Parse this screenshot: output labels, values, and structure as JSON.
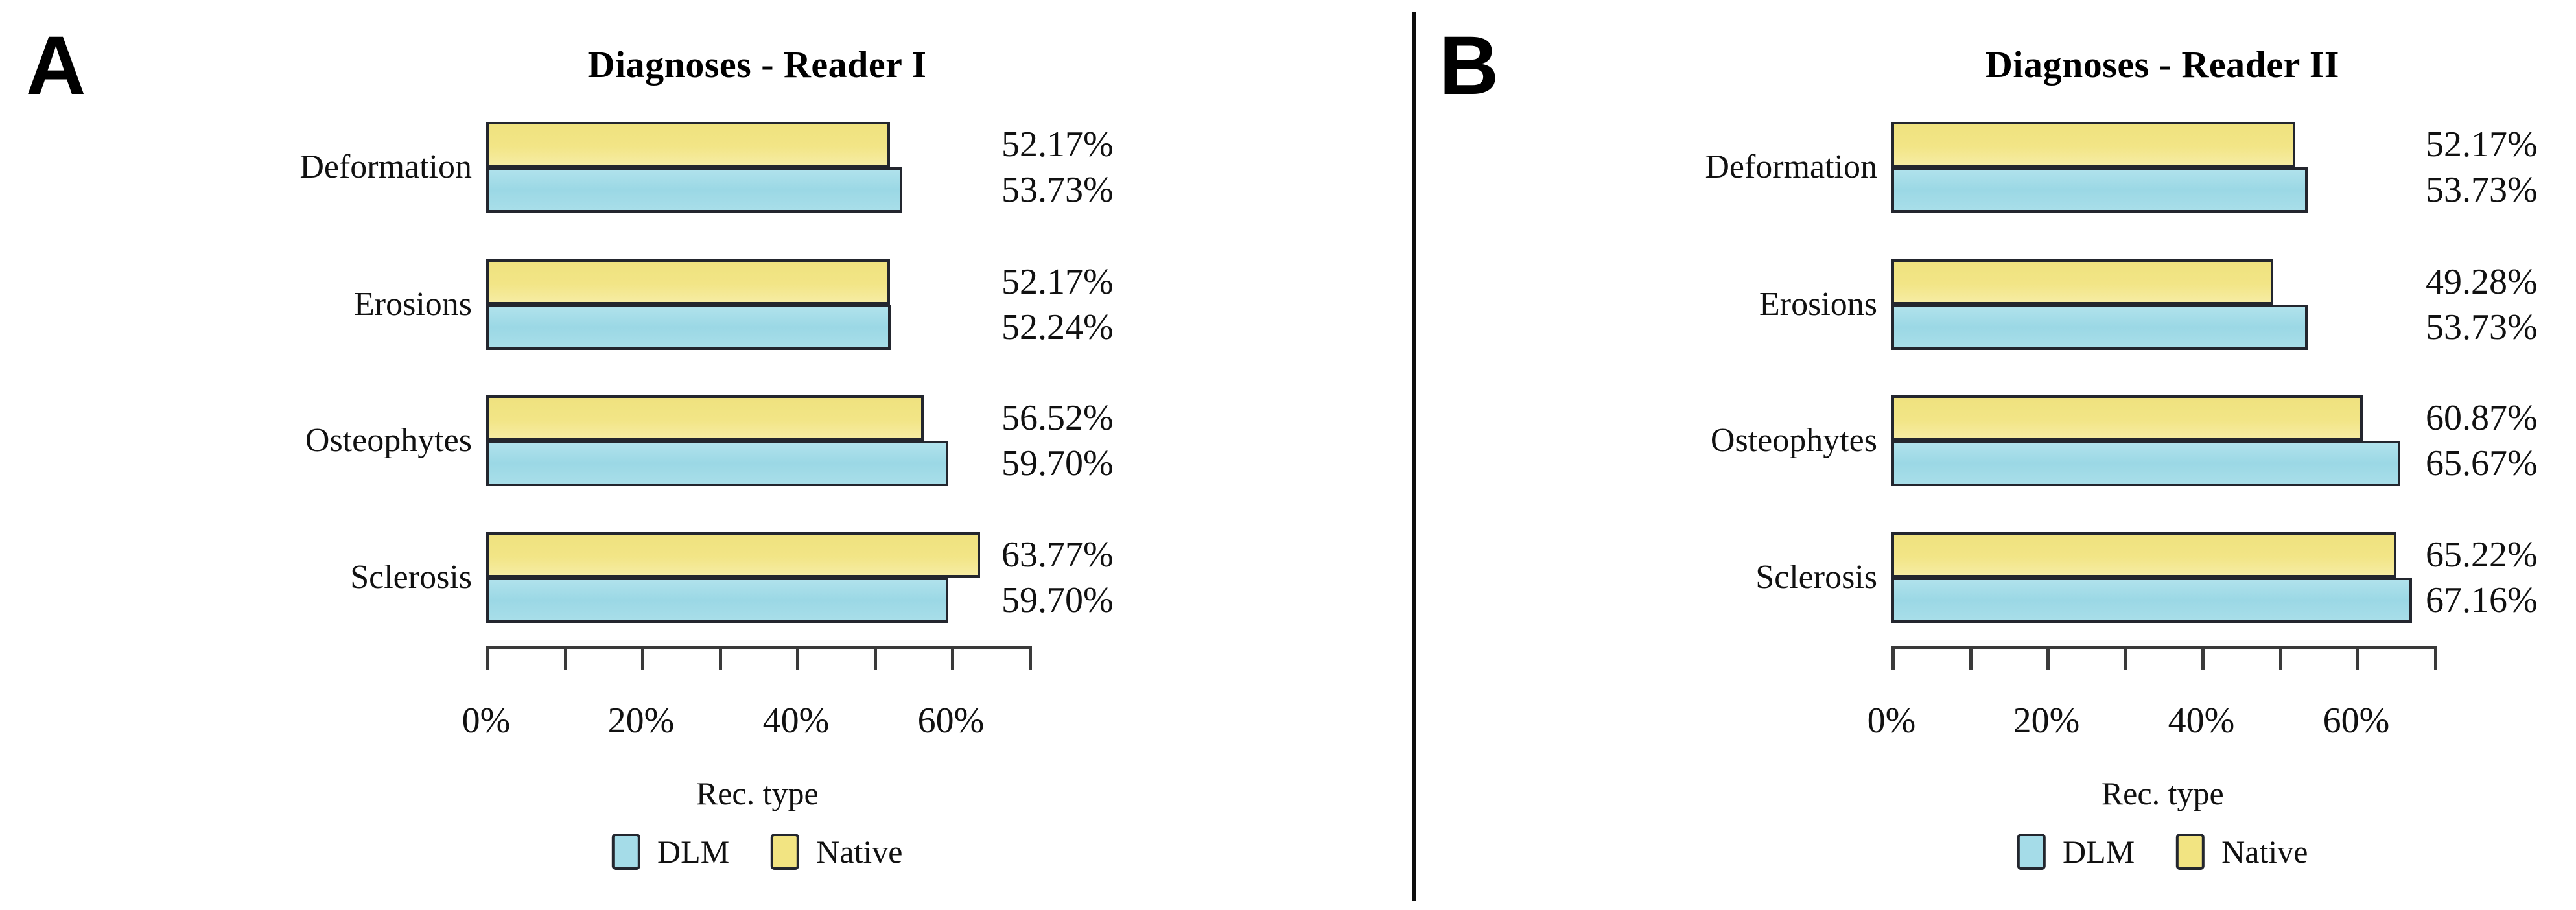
{
  "colors": {
    "native_fill": "#F2E482",
    "dlm_fill": "#A5DCE8",
    "bar_border": "#23262E",
    "axis": "#3A3A3A",
    "text": "#111111",
    "divider": "#0D0D0D",
    "background": "#FFFFFF"
  },
  "chart_data": [
    {
      "panel_label": "A",
      "type": "bar",
      "orientation": "horizontal",
      "title": "Diagnoses - Reader I",
      "categories": [
        "Deformation",
        "Erosions",
        "Osteophytes",
        "Sclerosis"
      ],
      "bar_order_top_to_bottom": [
        "Native",
        "DLM"
      ],
      "series": [
        {
          "name": "Native",
          "color": "#F2E482",
          "values": [
            52.17,
            52.17,
            56.52,
            63.77
          ],
          "labels": [
            "52.17%",
            "52.17%",
            "56.52%",
            "63.77%"
          ]
        },
        {
          "name": "DLM",
          "color": "#A5DCE8",
          "values": [
            53.73,
            52.24,
            59.7,
            59.7
          ],
          "labels": [
            "53.73%",
            "52.24%",
            "59.70%",
            "59.70%"
          ]
        }
      ],
      "x_axis": {
        "range": [
          0,
          70
        ],
        "tick_values": [
          0,
          20,
          40,
          60
        ],
        "tick_labels": [
          "0%",
          "20%",
          "40%",
          "60%"
        ],
        "minor_tick_values": [
          0,
          10,
          20,
          30,
          40,
          50,
          60,
          70
        ]
      },
      "legend": {
        "title": "Rec. type",
        "items": [
          {
            "label": "DLM",
            "color": "#A5DCE8"
          },
          {
            "label": "Native",
            "color": "#F2E482"
          }
        ]
      }
    },
    {
      "panel_label": "B",
      "type": "bar",
      "orientation": "horizontal",
      "title": "Diagnoses - Reader II",
      "categories": [
        "Deformation",
        "Erosions",
        "Osteophytes",
        "Sclerosis"
      ],
      "bar_order_top_to_bottom": [
        "Native",
        "DLM"
      ],
      "series": [
        {
          "name": "Native",
          "color": "#F2E482",
          "values": [
            52.17,
            49.28,
            60.87,
            65.22
          ],
          "labels": [
            "52.17%",
            "49.28%",
            "60.87%",
            "65.22%"
          ]
        },
        {
          "name": "DLM",
          "color": "#A5DCE8",
          "values": [
            53.73,
            53.73,
            65.67,
            67.16
          ],
          "labels": [
            "53.73%",
            "53.73%",
            "65.67%",
            "67.16%"
          ]
        }
      ],
      "x_axis": {
        "range": [
          0,
          70
        ],
        "tick_values": [
          0,
          20,
          40,
          60
        ],
        "tick_labels": [
          "0%",
          "20%",
          "40%",
          "60%"
        ],
        "minor_tick_values": [
          0,
          10,
          20,
          30,
          40,
          50,
          60,
          70
        ]
      },
      "legend": {
        "title": "Rec. type",
        "items": [
          {
            "label": "DLM",
            "color": "#A5DCE8"
          },
          {
            "label": "Native",
            "color": "#F2E482"
          }
        ]
      }
    }
  ]
}
